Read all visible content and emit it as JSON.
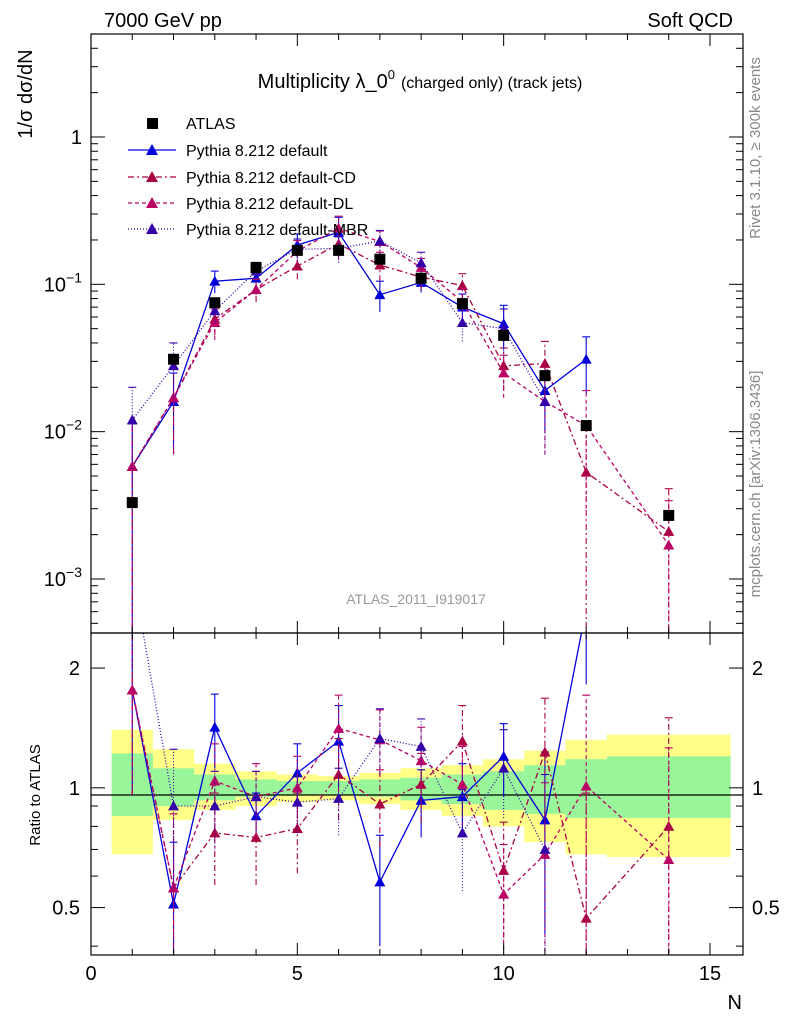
{
  "header": {
    "left": "7000 GeV pp",
    "right": "Soft QCD"
  },
  "side_labels": {
    "rivet": "Rivet 3.1.10, ≥ 300k events",
    "mcplots": "mcplots.cern.ch [arXiv:1306.3436]"
  },
  "chart_data": {
    "type": "scatter",
    "title": "Multiplicity λ_0",
    "title_sup": "0",
    "title_suffix": "(charged only) (track jets)",
    "ylabel": "1/σ dσ/dN",
    "ratio_ylabel": "Ratio to ATLAS",
    "xlabel": "N",
    "watermark": "ATLAS_2011_I919017",
    "xlim": [
      0,
      15.8
    ],
    "ylim": [
      0.00043,
      5
    ],
    "ratio_ylim": [
      0.38,
      2.45
    ],
    "x_ticks": [
      "0",
      "5",
      "10",
      "15"
    ],
    "y_ticks": [
      {
        "base": "10",
        "exp": "−3"
      },
      {
        "base": "10",
        "exp": "−2"
      },
      {
        "base": "10",
        "exp": "−1"
      },
      {
        "base": "1",
        "exp": ""
      }
    ],
    "ratio_ticks": [
      "0.5",
      "1",
      "2"
    ],
    "legend": [
      "ATLAS",
      "Pythia 8.212 default",
      "Pythia 8.212 default-CD",
      "Pythia 8.212 default-DL",
      "Pythia 8.212 default-MBR"
    ],
    "data": {
      "name": "ATLAS",
      "x": [
        1,
        2,
        3,
        4,
        5,
        6,
        7,
        8,
        9,
        10,
        11,
        12,
        14
      ],
      "y": [
        0.0033,
        0.031,
        0.075,
        0.13,
        0.17,
        0.17,
        0.148,
        0.11,
        0.074,
        0.045,
        0.024,
        0.011,
        0.0027
      ],
      "band_edges": [
        0.5,
        1.5,
        2.5,
        3.5,
        4.5,
        5.5,
        6.5,
        7.5,
        8.5,
        9.5,
        10.5,
        11.5,
        12.5,
        15.5
      ],
      "band_green": [
        [
          0.85,
          1.22
        ],
        [
          0.9,
          1.12
        ],
        [
          0.93,
          1.08
        ],
        [
          0.95,
          1.05
        ],
        [
          0.96,
          1.04
        ],
        [
          0.96,
          1.04
        ],
        [
          0.95,
          1.05
        ],
        [
          0.93,
          1.06
        ],
        [
          0.91,
          1.08
        ],
        [
          0.88,
          1.1
        ],
        [
          0.86,
          1.14
        ],
        [
          0.84,
          1.18
        ],
        [
          0.84,
          1.2
        ]
      ],
      "band_yellow": [
        [
          0.68,
          1.4
        ],
        [
          0.83,
          1.25
        ],
        [
          0.88,
          1.15
        ],
        [
          0.9,
          1.1
        ],
        [
          0.92,
          1.08
        ],
        [
          0.93,
          1.07
        ],
        [
          0.91,
          1.09
        ],
        [
          0.88,
          1.12
        ],
        [
          0.85,
          1.14
        ],
        [
          0.8,
          1.18
        ],
        [
          0.73,
          1.24
        ],
        [
          0.68,
          1.32
        ],
        [
          0.67,
          1.36
        ]
      ]
    },
    "series": [
      {
        "name": "Pythia 8.212 default",
        "color": "#0000dd",
        "dash": "",
        "x": [
          1,
          2,
          3,
          4,
          5,
          6,
          7,
          8,
          9,
          10,
          11,
          12
        ],
        "y": [
          0.0058,
          0.016,
          0.105,
          0.11,
          0.185,
          0.225,
          0.085,
          0.103,
          0.07,
          0.054,
          0.019,
          0.031
        ],
        "err": [
          0.0055,
          0.009,
          0.018,
          0.015,
          0.035,
          0.06,
          0.02,
          0.015,
          0.016,
          0.018,
          0.009,
          0.013
        ],
        "ratio": [
          1.76,
          0.51,
          1.42,
          0.85,
          1.09,
          1.31,
          0.58,
          0.93,
          0.95,
          1.2,
          0.83,
          2.82
        ],
        "ratio_err": [
          0.8,
          0.22,
          0.3,
          0.12,
          0.2,
          0.3,
          0.18,
          0.18,
          0.2,
          0.25,
          0.4,
          1.0
        ]
      },
      {
        "name": "Pythia 8.212 default-CD",
        "color": "#aa0044",
        "dash": "6,3,2,3",
        "x": [
          1,
          2,
          3,
          4,
          5,
          6,
          7,
          8,
          9,
          10,
          11,
          12,
          14
        ],
        "y": [
          0.0058,
          0.017,
          0.058,
          0.092,
          0.133,
          0.188,
          0.135,
          0.112,
          0.098,
          0.028,
          0.029,
          0.0053,
          0.0021
        ],
        "err": [
          0.0055,
          0.01,
          0.013,
          0.016,
          0.025,
          0.04,
          0.03,
          0.02,
          0.02,
          0.009,
          0.012,
          0.005,
          0.002
        ],
        "ratio": [
          1.76,
          0.56,
          0.77,
          0.75,
          0.79,
          1.08,
          0.91,
          1.02,
          1.31,
          0.62,
          1.23,
          0.47,
          0.8
        ],
        "ratio_err": [
          0.8,
          0.3,
          0.2,
          0.18,
          0.18,
          0.25,
          0.2,
          0.2,
          0.3,
          0.2,
          0.45,
          0.5,
          0.7
        ]
      },
      {
        "name": "Pythia 8.212 default-DL",
        "color": "#bb0066",
        "dash": "4,3",
        "x": [
          1,
          2,
          3,
          4,
          5,
          6,
          7,
          8,
          9,
          10,
          11,
          12,
          14
        ],
        "y": [
          0.0058,
          0.017,
          0.055,
          0.092,
          0.168,
          0.24,
          0.195,
          0.13,
          0.076,
          0.025,
          0.016,
          0.011,
          0.0017
        ],
        "err": [
          0.0055,
          0.01,
          0.013,
          0.016,
          0.03,
          0.05,
          0.035,
          0.02,
          0.018,
          0.008,
          0.009,
          0.008,
          0.0017
        ],
        "ratio": [
          1.76,
          0.56,
          1.04,
          0.95,
          1.0,
          1.41,
          1.32,
          1.17,
          1.02,
          0.54,
          0.68,
          1.01,
          0.66
        ],
        "ratio_err": [
          0.8,
          0.3,
          0.25,
          0.2,
          0.2,
          0.3,
          0.25,
          0.25,
          0.25,
          0.18,
          0.35,
          0.7,
          0.6
        ]
      },
      {
        "name": "Pythia 8.212 default-MBR",
        "color": "#3300aa",
        "dash": "1,2",
        "x": [
          1,
          2,
          3,
          4,
          5,
          6,
          7,
          8,
          9,
          10,
          11
        ],
        "y": [
          0.012,
          0.028,
          0.066,
          0.123,
          0.173,
          0.175,
          0.197,
          0.14,
          0.055,
          0.05,
          0.016
        ],
        "err": [
          0.008,
          0.012,
          0.012,
          0.018,
          0.03,
          0.035,
          0.035,
          0.025,
          0.014,
          0.018,
          0.009
        ],
        "ratio": [
          3.5,
          0.9,
          0.9,
          0.95,
          0.92,
          0.94,
          1.33,
          1.27,
          0.77,
          1.12,
          0.7
        ],
        "ratio_err": [
          1.5,
          0.35,
          0.2,
          0.15,
          0.15,
          0.18,
          0.25,
          0.22,
          0.22,
          0.28,
          0.38
        ]
      }
    ]
  }
}
